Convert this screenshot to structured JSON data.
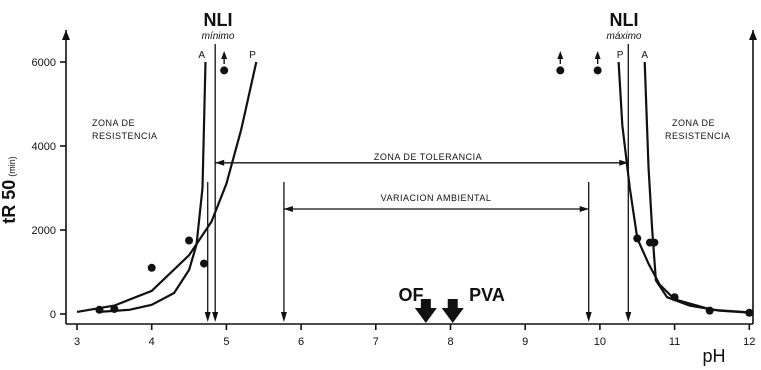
{
  "chart_data": {
    "type": "scatter",
    "xlabel": "pH",
    "ylabel": "tR 50",
    "ylabel_unit": "(min)",
    "xlim": [
      3,
      12
    ],
    "ylim": [
      0,
      6000
    ],
    "xticks": [
      "3",
      "4",
      "5",
      "6",
      "7",
      "8",
      "9",
      "10",
      "11",
      "12"
    ],
    "yticks": [
      "0",
      "2000",
      "4000",
      "6000"
    ],
    "points": [
      {
        "x": 3.3,
        "y": 100
      },
      {
        "x": 3.5,
        "y": 120
      },
      {
        "x": 4.0,
        "y": 1100
      },
      {
        "x": 4.5,
        "y": 1750
      },
      {
        "x": 4.7,
        "y": 1200
      },
      {
        "x": 4.97,
        "y": 5800
      },
      {
        "x": 9.47,
        "y": 5800
      },
      {
        "x": 9.97,
        "y": 5800
      },
      {
        "x": 10.5,
        "y": 1800
      },
      {
        "x": 10.67,
        "y": 1700
      },
      {
        "x": 10.73,
        "y": 1700
      },
      {
        "x": 11.0,
        "y": 400
      },
      {
        "x": 11.47,
        "y": 80
      },
      {
        "x": 12.0,
        "y": 30
      }
    ],
    "arrow_points_x": [
      4.97,
      9.47,
      9.97
    ],
    "curves": [
      {
        "label": "A",
        "points": [
          [
            3.3,
            50
          ],
          [
            3.7,
            100
          ],
          [
            4.0,
            220
          ],
          [
            4.3,
            500
          ],
          [
            4.5,
            1050
          ],
          [
            4.6,
            1650
          ],
          [
            4.68,
            3000
          ],
          [
            4.72,
            6000
          ]
        ]
      },
      {
        "label": "P",
        "points": [
          [
            3.0,
            50
          ],
          [
            3.5,
            200
          ],
          [
            4.0,
            550
          ],
          [
            4.5,
            1400
          ],
          [
            4.8,
            2200
          ],
          [
            5.0,
            3100
          ],
          [
            5.2,
            4400
          ],
          [
            5.4,
            6000
          ]
        ]
      },
      {
        "label": "P",
        "points": [
          [
            10.25,
            6000
          ],
          [
            10.3,
            4500
          ],
          [
            10.4,
            3000
          ],
          [
            10.5,
            1800
          ],
          [
            10.65,
            1200
          ],
          [
            10.8,
            700
          ],
          [
            11.0,
            350
          ],
          [
            11.5,
            100
          ],
          [
            12.0,
            40
          ]
        ]
      },
      {
        "label": "A",
        "points": [
          [
            10.6,
            6000
          ],
          [
            10.65,
            3500
          ],
          [
            10.7,
            2000
          ],
          [
            10.75,
            800
          ],
          [
            10.9,
            400
          ],
          [
            11.2,
            200
          ],
          [
            11.6,
            80
          ],
          [
            12.0,
            30
          ]
        ]
      }
    ],
    "vlines": [
      4.85,
      10.38,
      4.75,
      5.77,
      9.85
    ],
    "nli_min": {
      "title": "NLI",
      "sub": "mínimo",
      "x": 4.85
    },
    "nli_max": {
      "title": "NLI",
      "sub": "máximo",
      "x": 10.38
    },
    "zona_tolerancia": {
      "label": "ZONA DE TOLERANCIA",
      "x1": 4.85,
      "x2": 10.38,
      "y": 3600
    },
    "variacion_ambiental": {
      "label": "VARIACION AMBIENTAL",
      "x1": 5.77,
      "x2": 9.85,
      "y": 2500
    },
    "zona_resistencia_left": [
      "ZONA DE",
      "RESISTENCIA"
    ],
    "zona_resistencia_right": [
      "ZONA DE",
      "RESISTENCIA"
    ],
    "markers": [
      {
        "label": "OF",
        "x": 7.67
      },
      {
        "label": "PVA",
        "x": 8.03
      }
    ],
    "curve_labels": [
      {
        "text": "A",
        "x": 4.67,
        "y": 6000
      },
      {
        "text": "P",
        "x": 5.35,
        "y": 6000
      },
      {
        "text": "P",
        "x": 10.27,
        "y": 6000
      },
      {
        "text": "A",
        "x": 10.6,
        "y": 6000
      }
    ]
  }
}
